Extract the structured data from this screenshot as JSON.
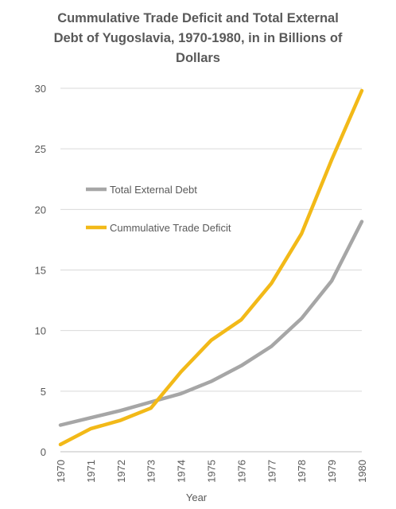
{
  "chart_data": {
    "type": "line",
    "title": "Cummulative Trade Deficit and Total External Debt of Yugoslavia, 1970-1980, in in Billions of Dollars",
    "title_lines": [
      "Cummulative Trade Deficit and Total External",
      "Debt of Yugoslavia, 1970-1980, in in Billions of",
      "Dollars"
    ],
    "xlabel": "Year",
    "ylabel": "",
    "x": [
      "1970",
      "1971",
      "1972",
      "1973",
      "1974",
      "1975",
      "1976",
      "1977",
      "1978",
      "1979",
      "1980"
    ],
    "ylim": [
      0,
      30
    ],
    "yticks": [
      "0",
      "5",
      "10",
      "15",
      "20",
      "25",
      "30"
    ],
    "grid": "horizontal",
    "legend_position": "center-left",
    "series": [
      {
        "name": "Total External Debt",
        "color": "#a6a6a6",
        "values": [
          2.2,
          2.8,
          3.4,
          4.1,
          4.8,
          5.8,
          7.1,
          8.7,
          11.0,
          14.1,
          19.0
        ]
      },
      {
        "name": "Cummulative Trade Deficit",
        "color": "#f2b918",
        "values": [
          0.6,
          1.9,
          2.6,
          3.6,
          6.6,
          9.2,
          10.9,
          13.9,
          18.0,
          24.1,
          29.8
        ]
      }
    ]
  }
}
